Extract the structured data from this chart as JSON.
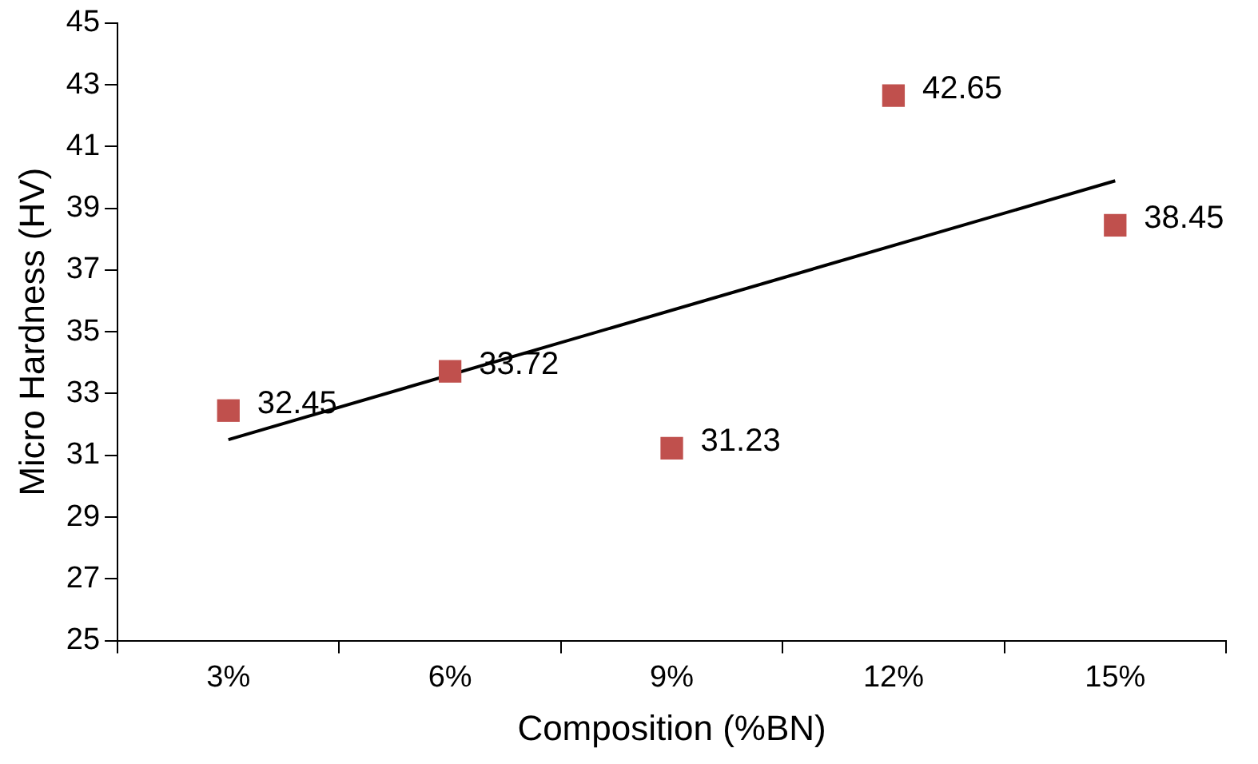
{
  "chart_data": {
    "type": "scatter",
    "xlabel": "Composition (%BN)",
    "ylabel": "Micro Hardness (HV)",
    "categories": [
      "3%",
      "6%",
      "9%",
      "12%",
      "15%"
    ],
    "series": [
      {
        "color": "#c0504d",
        "marker": "square",
        "values": [
          32.45,
          33.72,
          31.23,
          42.65,
          38.45
        ],
        "value_labels": [
          "32.45",
          "33.72",
          "31.23",
          "42.65",
          "38.45"
        ]
      },
      {
        "type": "line",
        "marker": "none",
        "x": [
          "3%",
          "15%"
        ],
        "color": "#000000",
        "values": [
          31.51,
          39.89
        ]
      }
    ],
    "ylim": [
      25,
      45
    ],
    "yticks": [
      25,
      27,
      29,
      31,
      33,
      35,
      37,
      39,
      41,
      43,
      45
    ],
    "grid": false,
    "legend": false
  }
}
